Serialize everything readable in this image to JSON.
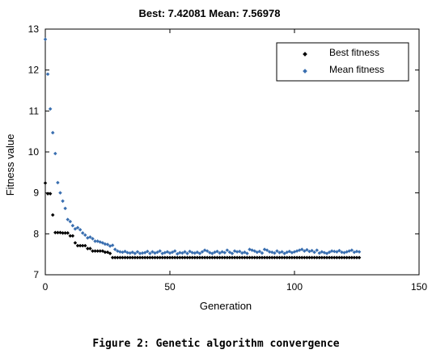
{
  "chart_data": {
    "type": "scatter",
    "title": "Best: 7.42081 Mean: 7.56978",
    "xlabel": "Generation",
    "ylabel": "Fitness value",
    "xlim": [
      0,
      150
    ],
    "ylim": [
      7,
      13
    ],
    "xticks": [
      "0",
      "50",
      "100",
      "150"
    ],
    "yticks": [
      "7",
      "8",
      "9",
      "10",
      "11",
      "12",
      "13"
    ],
    "grid": false,
    "legend_position": "top-right",
    "series": [
      {
        "name": "Best fitness",
        "color": "#000000",
        "marker": "diamond",
        "x": [
          0,
          1,
          2,
          3,
          4,
          5,
          6,
          7,
          8,
          9,
          10,
          11,
          12,
          13,
          14,
          15,
          16,
          17,
          18,
          19,
          20,
          21,
          22,
          23,
          24,
          25,
          26,
          27,
          28,
          29,
          30,
          31,
          32,
          33,
          34,
          35,
          36,
          37,
          38,
          39,
          40,
          41,
          42,
          43,
          44,
          45,
          46,
          47,
          48,
          49,
          50,
          51,
          52,
          53,
          54,
          55,
          56,
          57,
          58,
          59,
          60,
          61,
          62,
          63,
          64,
          65,
          66,
          67,
          68,
          69,
          70,
          71,
          72,
          73,
          74,
          75,
          76,
          77,
          78,
          79,
          80,
          81,
          82,
          83,
          84,
          85,
          86,
          87,
          88,
          89,
          90,
          91,
          92,
          93,
          94,
          95,
          96,
          97,
          98,
          99,
          100,
          101,
          102,
          103,
          104,
          105,
          106,
          107,
          108,
          109,
          110,
          111,
          112,
          113,
          114,
          115,
          116,
          117,
          118,
          119,
          120,
          121,
          122,
          123,
          124,
          125,
          126
        ],
        "y": [
          9.24,
          8.98,
          8.98,
          8.46,
          8.03,
          8.03,
          8.03,
          8.02,
          8.02,
          8.02,
          7.95,
          7.95,
          7.78,
          7.71,
          7.71,
          7.71,
          7.71,
          7.64,
          7.64,
          7.58,
          7.58,
          7.58,
          7.58,
          7.58,
          7.55,
          7.55,
          7.52,
          7.42,
          7.42,
          7.42,
          7.42,
          7.42,
          7.42,
          7.42,
          7.42,
          7.42,
          7.42,
          7.42,
          7.42,
          7.42,
          7.42,
          7.42,
          7.42,
          7.42,
          7.42,
          7.42,
          7.42,
          7.42,
          7.42,
          7.42,
          7.42,
          7.42,
          7.42,
          7.42,
          7.42,
          7.42,
          7.42,
          7.42,
          7.42,
          7.42,
          7.42,
          7.42,
          7.42,
          7.42,
          7.42,
          7.42,
          7.42,
          7.42,
          7.42,
          7.42,
          7.42,
          7.42,
          7.42,
          7.42,
          7.42,
          7.42,
          7.42,
          7.42,
          7.42,
          7.42,
          7.42,
          7.42,
          7.42,
          7.42,
          7.42,
          7.42,
          7.42,
          7.42,
          7.42,
          7.42,
          7.42,
          7.42,
          7.42,
          7.42,
          7.42,
          7.42,
          7.42,
          7.42,
          7.42,
          7.42,
          7.42,
          7.42,
          7.42,
          7.42,
          7.42,
          7.42,
          7.42,
          7.42,
          7.42,
          7.42,
          7.42,
          7.42,
          7.42,
          7.42,
          7.42,
          7.42,
          7.42,
          7.42,
          7.42,
          7.42,
          7.42,
          7.42,
          7.42,
          7.42,
          7.42,
          7.42,
          7.42
        ]
      },
      {
        "name": "Mean fitness",
        "color": "#3a6fb0",
        "marker": "diamond",
        "x": [
          0,
          1,
          2,
          3,
          4,
          5,
          6,
          7,
          8,
          9,
          10,
          11,
          12,
          13,
          14,
          15,
          16,
          17,
          18,
          19,
          20,
          21,
          22,
          23,
          24,
          25,
          26,
          27,
          28,
          29,
          30,
          31,
          32,
          33,
          34,
          35,
          36,
          37,
          38,
          39,
          40,
          41,
          42,
          43,
          44,
          45,
          46,
          47,
          48,
          49,
          50,
          51,
          52,
          53,
          54,
          55,
          56,
          57,
          58,
          59,
          60,
          61,
          62,
          63,
          64,
          65,
          66,
          67,
          68,
          69,
          70,
          71,
          72,
          73,
          74,
          75,
          76,
          77,
          78,
          79,
          80,
          81,
          82,
          83,
          84,
          85,
          86,
          87,
          88,
          89,
          90,
          91,
          92,
          93,
          94,
          95,
          96,
          97,
          98,
          99,
          100,
          101,
          102,
          103,
          104,
          105,
          106,
          107,
          108,
          109,
          110,
          111,
          112,
          113,
          114,
          115,
          116,
          117,
          118,
          119,
          120,
          121,
          122,
          123,
          124,
          125,
          126
        ],
        "y": [
          12.75,
          11.9,
          11.05,
          10.47,
          9.96,
          9.25,
          9.0,
          8.8,
          8.62,
          8.35,
          8.3,
          8.2,
          8.12,
          8.15,
          8.1,
          8.02,
          7.97,
          7.9,
          7.92,
          7.88,
          7.82,
          7.82,
          7.8,
          7.78,
          7.75,
          7.74,
          7.7,
          7.72,
          7.62,
          7.58,
          7.56,
          7.55,
          7.57,
          7.54,
          7.53,
          7.55,
          7.52,
          7.56,
          7.52,
          7.53,
          7.54,
          7.57,
          7.52,
          7.56,
          7.53,
          7.55,
          7.58,
          7.52,
          7.54,
          7.56,
          7.53,
          7.55,
          7.58,
          7.51,
          7.54,
          7.53,
          7.56,
          7.52,
          7.57,
          7.54,
          7.53,
          7.55,
          7.52,
          7.56,
          7.6,
          7.58,
          7.54,
          7.52,
          7.55,
          7.57,
          7.53,
          7.56,
          7.54,
          7.6,
          7.55,
          7.52,
          7.58,
          7.56,
          7.57,
          7.53,
          7.55,
          7.52,
          7.62,
          7.6,
          7.58,
          7.55,
          7.57,
          7.53,
          7.62,
          7.6,
          7.56,
          7.55,
          7.53,
          7.58,
          7.54,
          7.56,
          7.52,
          7.55,
          7.57,
          7.54,
          7.56,
          7.58,
          7.6,
          7.62,
          7.58,
          7.61,
          7.57,
          7.59,
          7.55,
          7.6,
          7.53,
          7.56,
          7.54,
          7.52,
          7.55,
          7.58,
          7.57,
          7.56,
          7.59,
          7.55,
          7.54,
          7.56,
          7.58,
          7.6,
          7.55,
          7.57,
          7.56
        ]
      }
    ]
  },
  "caption": "Figure 2: Genetic algorithm convergence"
}
